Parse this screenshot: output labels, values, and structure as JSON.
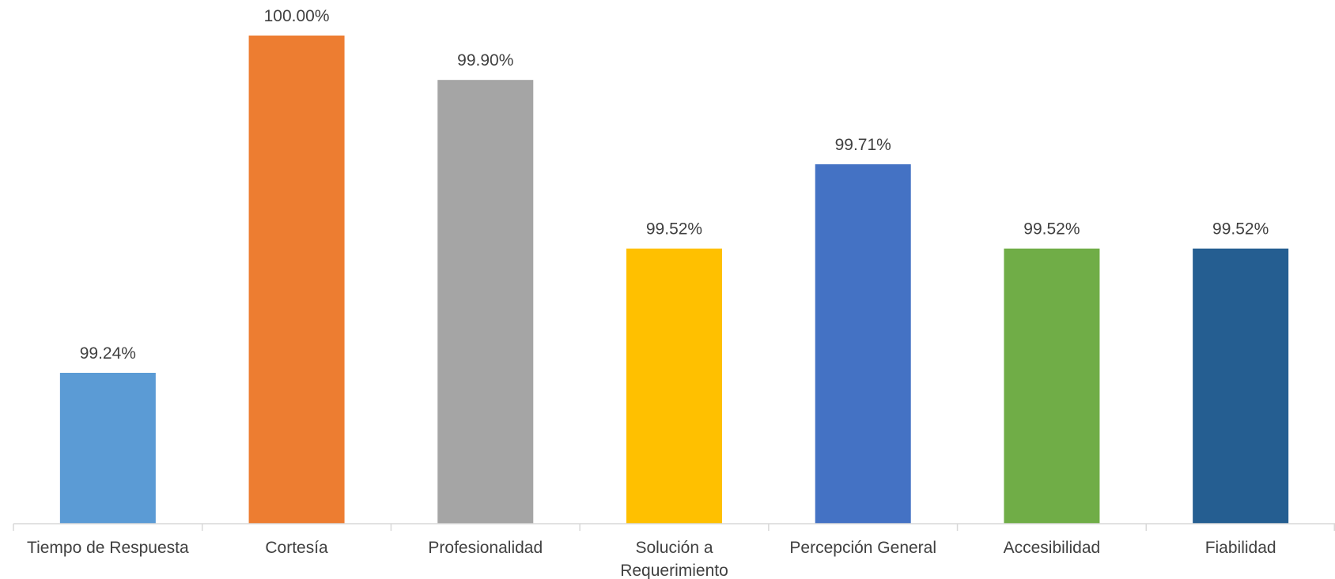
{
  "chart_data": {
    "type": "bar",
    "categories": [
      "Tiempo de Respuesta",
      "Cortesía",
      "Profesionalidad",
      "Solución a Requerimiento",
      "Percepción General",
      "Accesibilidad",
      "Fiabilidad"
    ],
    "category_lines": [
      [
        "Tiempo de Respuesta"
      ],
      [
        "Cortesía"
      ],
      [
        "Profesionalidad"
      ],
      [
        "Solución a",
        "Requerimiento"
      ],
      [
        "Percepción General"
      ],
      [
        "Accesibilidad"
      ],
      [
        "Fiabilidad"
      ]
    ],
    "values": [
      99.24,
      100.0,
      99.9,
      99.52,
      99.71,
      99.52,
      99.52
    ],
    "value_labels": [
      "99.24%",
      "100.00%",
      "99.90%",
      "99.52%",
      "99.71%",
      "99.52%",
      "99.52%"
    ],
    "colors": [
      "#5B9BD5",
      "#ED7D31",
      "#A5A5A5",
      "#FFC000",
      "#4472C4",
      "#70AD47",
      "#255E91"
    ],
    "ylim": [
      98.9,
      100.0
    ],
    "grid": false,
    "legend": "none"
  }
}
